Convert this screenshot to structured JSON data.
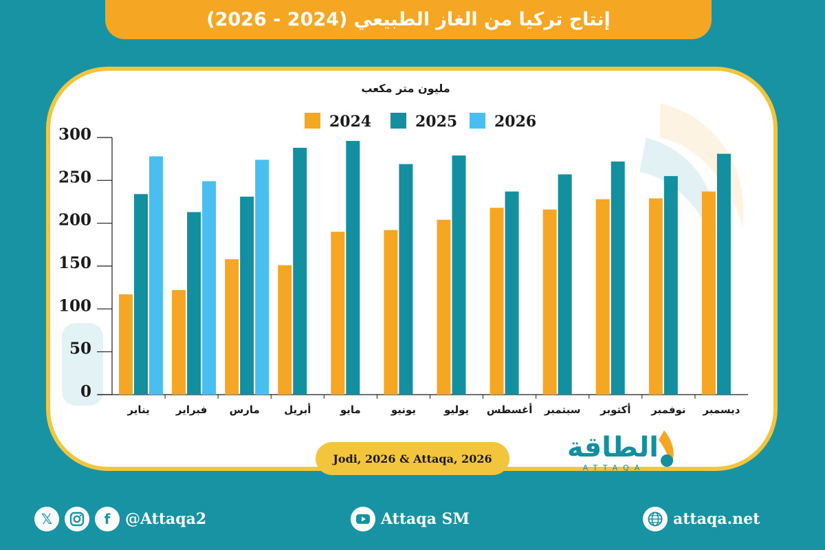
{
  "title": "إنتاج تركيا من الغاز الطبيعي (2024 - 2026)",
  "source": "Jodi, 2026 & Attaqa, 2026",
  "brand": {
    "arabic": "الطاقة",
    "latin": "ATTAQA"
  },
  "footer": {
    "social_handle": "@Attaqa2",
    "youtube": "Attaqa SM",
    "website": "attaqa.net"
  },
  "colors": {
    "background": "#1893a4",
    "title_bar": "#f5a623",
    "card_border": "#f3c53c",
    "series_2024": "#f5a623",
    "series_2025": "#12909f",
    "series_2026": "#48bff0"
  },
  "icons": [
    "x-icon",
    "instagram-icon",
    "facebook-icon",
    "youtube-icon",
    "globe-icon"
  ],
  "chart_data": {
    "type": "bar",
    "title": "",
    "ylabel": "مليون متر مكعب",
    "xlabel": "",
    "ylim": [
      0,
      300
    ],
    "yticks": [
      0,
      50,
      100,
      150,
      200,
      250,
      300
    ],
    "legend_position": "top-center",
    "grid": false,
    "categories": [
      "يناير",
      "فبراير",
      "مارس",
      "أبريل",
      "مايو",
      "يونيو",
      "يوليو",
      "أغسطس",
      "سبتمبر",
      "أكتوبر",
      "نوفمبر",
      "ديسمبر"
    ],
    "series": [
      {
        "name": "2024",
        "color": "#f5a623",
        "values": [
          117,
          122,
          158,
          151,
          190,
          192,
          204,
          218,
          216,
          228,
          229,
          237
        ]
      },
      {
        "name": "2025",
        "color": "#12909f",
        "values": [
          234,
          213,
          231,
          288,
          296,
          269,
          279,
          237,
          257,
          272,
          255,
          281
        ]
      },
      {
        "name": "2026",
        "color": "#48bff0",
        "values": [
          278,
          249,
          274,
          null,
          null,
          null,
          null,
          null,
          null,
          null,
          null,
          null
        ]
      }
    ]
  }
}
